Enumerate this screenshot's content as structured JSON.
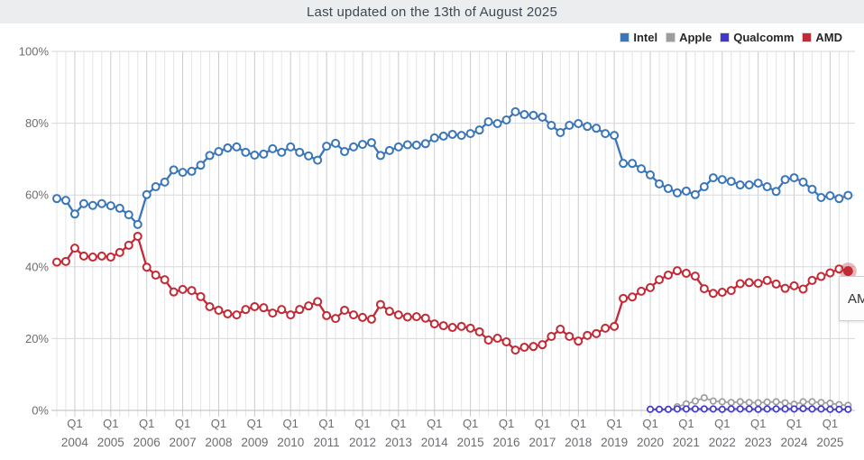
{
  "header": {
    "title": "Last updated on the 13th of August 2025"
  },
  "legend": [
    {
      "label": "Intel",
      "color": "#3b76b8"
    },
    {
      "label": "Apple",
      "color": "#9d9d9d"
    },
    {
      "label": "Qualcomm",
      "color": "#4038cb"
    },
    {
      "label": "AMD",
      "color": "#c22a35"
    }
  ],
  "tooltip": {
    "label": "AMD"
  },
  "chart_data": {
    "type": "line",
    "title": "Last updated on the 13th of August 2025",
    "xlabel": "",
    "ylabel": "",
    "ylim": [
      0,
      100
    ],
    "grid": true,
    "legend_position": "top-right",
    "y_ticks": [
      "0%",
      "20%",
      "40%",
      "60%",
      "80%",
      "100%"
    ],
    "x_tick_quarter_label": "Q1",
    "x_tick_years": [
      2004,
      2005,
      2006,
      2007,
      2008,
      2009,
      2010,
      2011,
      2012,
      2013,
      2014,
      2015,
      2016,
      2017,
      2018,
      2019,
      2020,
      2021,
      2022,
      2023,
      2024,
      2025
    ],
    "quarters": [
      "2003 Q3",
      "2003 Q4",
      "2004 Q1",
      "2004 Q2",
      "2004 Q3",
      "2004 Q4",
      "2005 Q1",
      "2005 Q2",
      "2005 Q3",
      "2005 Q4",
      "2006 Q1",
      "2006 Q2",
      "2006 Q3",
      "2006 Q4",
      "2007 Q1",
      "2007 Q2",
      "2007 Q3",
      "2007 Q4",
      "2008 Q1",
      "2008 Q2",
      "2008 Q3",
      "2008 Q4",
      "2009 Q1",
      "2009 Q2",
      "2009 Q3",
      "2009 Q4",
      "2010 Q1",
      "2010 Q2",
      "2010 Q3",
      "2010 Q4",
      "2011 Q1",
      "2011 Q2",
      "2011 Q3",
      "2011 Q4",
      "2012 Q1",
      "2012 Q2",
      "2012 Q3",
      "2012 Q4",
      "2013 Q1",
      "2013 Q2",
      "2013 Q3",
      "2013 Q4",
      "2014 Q1",
      "2014 Q2",
      "2014 Q3",
      "2014 Q4",
      "2015 Q1",
      "2015 Q2",
      "2015 Q3",
      "2015 Q4",
      "2016 Q1",
      "2016 Q2",
      "2016 Q3",
      "2016 Q4",
      "2017 Q1",
      "2017 Q2",
      "2017 Q3",
      "2017 Q4",
      "2018 Q1",
      "2018 Q2",
      "2018 Q3",
      "2018 Q4",
      "2019 Q1",
      "2019 Q2",
      "2019 Q3",
      "2019 Q4",
      "2020 Q1",
      "2020 Q2",
      "2020 Q3",
      "2020 Q4",
      "2021 Q1",
      "2021 Q2",
      "2021 Q3",
      "2021 Q4",
      "2022 Q1",
      "2022 Q2",
      "2022 Q3",
      "2022 Q4",
      "2023 Q1",
      "2023 Q2",
      "2023 Q3",
      "2023 Q4",
      "2024 Q1",
      "2024 Q2",
      "2024 Q3",
      "2024 Q4",
      "2025 Q1",
      "2025 Q2",
      "2025 Q3"
    ],
    "series": [
      {
        "name": "Intel",
        "color": "#3b76b8",
        "start_index": 0,
        "marker": "large",
        "values": [
          59.0,
          58.5,
          54.7,
          57.6,
          57.1,
          57.6,
          57.0,
          56.3,
          54.5,
          51.8,
          60.1,
          62.3,
          63.6,
          67.0,
          66.3,
          66.6,
          68.3,
          71.0,
          72.1,
          73.1,
          73.4,
          71.9,
          71.1,
          71.4,
          72.9,
          71.9,
          73.4,
          71.9,
          70.9,
          69.7,
          73.6,
          74.4,
          72.1,
          73.4,
          74.1,
          74.6,
          71.0,
          72.4,
          73.4,
          74.0,
          73.9,
          74.3,
          75.9,
          76.4,
          76.9,
          76.6,
          77.1,
          78.1,
          80.4,
          79.9,
          80.9,
          83.2,
          82.4,
          82.2,
          81.7,
          79.4,
          77.4,
          79.4,
          79.9,
          79.1,
          78.6,
          77.1,
          76.6,
          68.8,
          68.8,
          67.3,
          65.6,
          63.1,
          61.8,
          60.6,
          61.1,
          60.1,
          62.3,
          64.8,
          64.3,
          63.8,
          62.8,
          62.8,
          63.3,
          62.3,
          61.0,
          64.3,
          64.8,
          63.6,
          61.6,
          59.3,
          59.8,
          59.0,
          59.9
        ]
      },
      {
        "name": "Apple",
        "color": "#9d9d9d",
        "start_index": 69,
        "marker": "small",
        "values": [
          1.0,
          1.8,
          2.6,
          3.5,
          2.6,
          2.4,
          2.2,
          2.4,
          2.2,
          2.1,
          2.3,
          2.4,
          2.1,
          1.7,
          2.4,
          2.4,
          2.2,
          2.0,
          1.6,
          1.4
        ]
      },
      {
        "name": "Qualcomm",
        "color": "#4038cb",
        "start_index": 66,
        "marker": "small",
        "values": [
          0.3,
          0.3,
          0.3,
          0.4,
          0.4,
          0.4,
          0.4,
          0.4,
          0.3,
          0.4,
          0.4,
          0.4,
          0.3,
          0.4,
          0.4,
          0.4,
          0.4,
          0.5,
          0.4,
          0.4,
          0.3,
          0.3,
          0.3
        ]
      },
      {
        "name": "AMD",
        "color": "#c22a35",
        "start_index": 0,
        "marker": "large",
        "highlight_last": true,
        "values": [
          41.3,
          41.5,
          45.2,
          43.0,
          42.7,
          43.0,
          42.7,
          44.0,
          46.0,
          48.5,
          39.9,
          37.7,
          36.4,
          33.0,
          33.7,
          33.4,
          31.7,
          28.9,
          27.9,
          26.9,
          26.6,
          28.1,
          28.9,
          28.6,
          27.1,
          28.1,
          26.6,
          28.1,
          29.1,
          30.3,
          26.4,
          25.6,
          27.9,
          26.6,
          25.9,
          25.4,
          29.5,
          27.6,
          26.6,
          26.0,
          26.1,
          25.7,
          24.1,
          23.6,
          23.1,
          23.4,
          22.9,
          21.9,
          19.6,
          20.1,
          19.1,
          16.8,
          17.6,
          17.8,
          18.3,
          20.6,
          22.6,
          20.6,
          19.3,
          20.9,
          21.4,
          22.9,
          23.4,
          31.2,
          31.6,
          33.2,
          34.2,
          36.4,
          37.7,
          38.9,
          38.2,
          37.4,
          33.9,
          32.6,
          32.9,
          33.4,
          35.3,
          35.6,
          35.4,
          36.2,
          35.2,
          34.0,
          34.7,
          33.8,
          36.2,
          37.3,
          38.3,
          39.4,
          38.8
        ]
      }
    ]
  }
}
